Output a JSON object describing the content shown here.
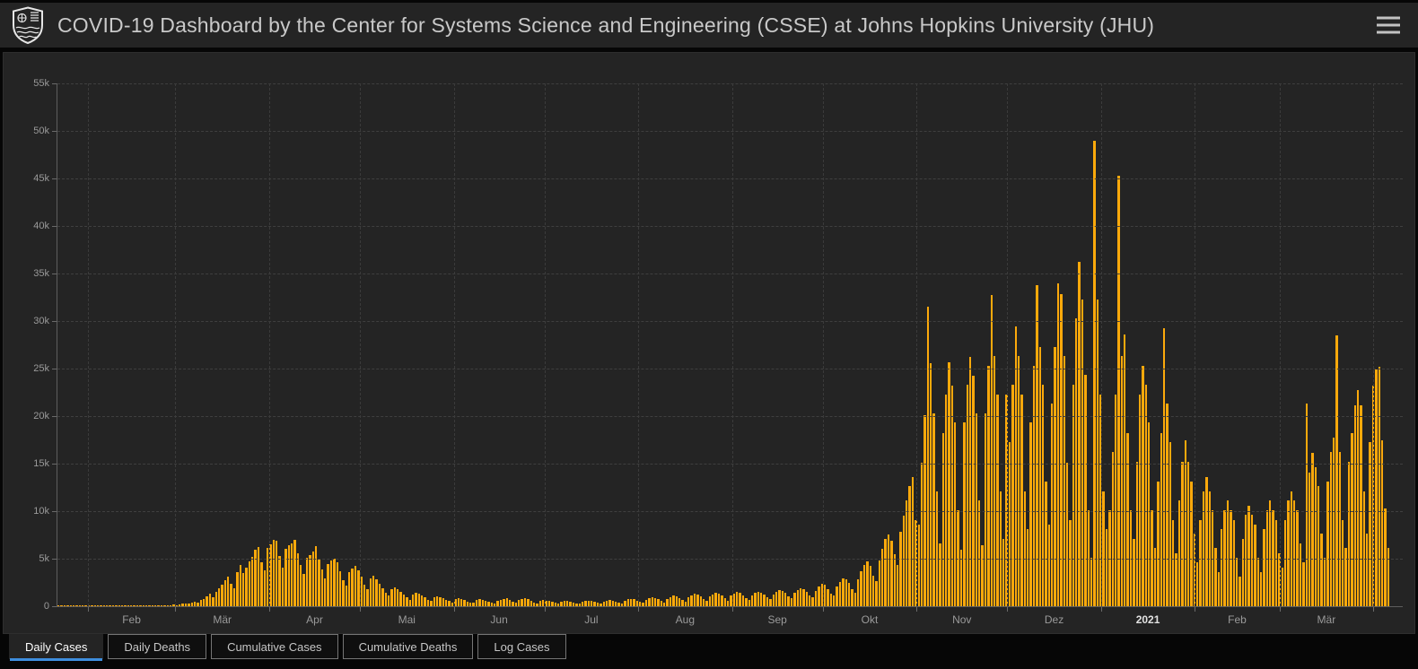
{
  "header": {
    "title": "COVID-19 Dashboard by the Center for Systems Science and Engineering (CSSE) at Johns Hopkins University (JHU)",
    "logo": "jhu-shield",
    "menu_icon": "hamburger"
  },
  "colors": {
    "bar": "#fca90b",
    "panel_bg": "#242424",
    "page_bg": "#060606",
    "active_tab_underline": "#3e8ede",
    "grid": "#3f3f3f",
    "axis": "#5e5e5e",
    "tick_text": "#9a9a9a",
    "title_text": "#c9c9c9"
  },
  "tabs": [
    {
      "label": "Daily Cases",
      "active": true
    },
    {
      "label": "Daily Deaths",
      "active": false
    },
    {
      "label": "Cumulative Cases",
      "active": false
    },
    {
      "label": "Cumulative Deaths",
      "active": false
    },
    {
      "label": "Log Cases",
      "active": false
    }
  ],
  "chart_data": {
    "type": "bar",
    "title": "",
    "xlabel": "",
    "ylabel": "",
    "ylim": [
      0,
      55000
    ],
    "grid": "dashed",
    "y_tick_labels": [
      "0",
      "5k",
      "10k",
      "15k",
      "20k",
      "25k",
      "30k",
      "35k",
      "40k",
      "45k",
      "50k",
      "55k"
    ],
    "total_days": 440,
    "month_boundaries": [
      10,
      39,
      70,
      100,
      131,
      161,
      192,
      223,
      253,
      284,
      314,
      345,
      376,
      404,
      435
    ],
    "months": [
      {
        "label": "Feb",
        "start": 10,
        "end": 39,
        "emphasis": false
      },
      {
        "label": "Mär",
        "start": 39,
        "end": 70,
        "emphasis": false
      },
      {
        "label": "Apr",
        "start": 70,
        "end": 100,
        "emphasis": false
      },
      {
        "label": "Mai",
        "start": 100,
        "end": 131,
        "emphasis": false
      },
      {
        "label": "Jun",
        "start": 131,
        "end": 161,
        "emphasis": false
      },
      {
        "label": "Jul",
        "start": 161,
        "end": 192,
        "emphasis": false
      },
      {
        "label": "Aug",
        "start": 192,
        "end": 223,
        "emphasis": false
      },
      {
        "label": "Sep",
        "start": 223,
        "end": 253,
        "emphasis": false
      },
      {
        "label": "Okt",
        "start": 253,
        "end": 284,
        "emphasis": false
      },
      {
        "label": "Nov",
        "start": 284,
        "end": 314,
        "emphasis": false
      },
      {
        "label": "Dez",
        "start": 314,
        "end": 345,
        "emphasis": false
      },
      {
        "label": "2021",
        "start": 345,
        "end": 376,
        "emphasis": true
      },
      {
        "label": "Feb",
        "start": 376,
        "end": 404,
        "emphasis": false
      },
      {
        "label": "Mär",
        "start": 404,
        "end": 435,
        "emphasis": false
      }
    ],
    "values": [
      1,
      1,
      2,
      2,
      3,
      4,
      4,
      5,
      6,
      8,
      9,
      10,
      11,
      12,
      13,
      14,
      14,
      15,
      16,
      17,
      18,
      19,
      20,
      22,
      24,
      26,
      28,
      30,
      33,
      36,
      40,
      45,
      52,
      60,
      70,
      85,
      105,
      130,
      160,
      120,
      200,
      260,
      330,
      270,
      420,
      520,
      400,
      650,
      800,
      1000,
      1300,
      900,
      1500,
      1850,
      2250,
      2700,
      3100,
      2350,
      1900,
      3600,
      4300,
      3500,
      4100,
      4700,
      5200,
      5900,
      6200,
      4600,
      3800,
      6100,
      6500,
      7000,
      6900,
      5300,
      4100,
      6000,
      6400,
      6600,
      7000,
      5600,
      4300,
      3400,
      5100,
      5400,
      5800,
      6300,
      4900,
      3900,
      2900,
      4400,
      4800,
      5000,
      4600,
      3700,
      2700,
      2200,
      3600,
      4000,
      4200,
      3800,
      3100,
      2300,
      1800,
      2900,
      3200,
      2800,
      2400,
      1900,
      1400,
      1100,
      1800,
      2000,
      1800,
      1500,
      1200,
      900,
      700,
      1200,
      1400,
      1300,
      1100,
      900,
      700,
      550,
      950,
      1050,
      950,
      850,
      700,
      550,
      420,
      720,
      820,
      740,
      640,
      520,
      420,
      360,
      620,
      720,
      660,
      560,
      460,
      360,
      310,
      560,
      660,
      720,
      820,
      620,
      460,
      360,
      620,
      760,
      820,
      720,
      560,
      410,
      310,
      560,
      660,
      610,
      560,
      460,
      360,
      290,
      510,
      610,
      560,
      510,
      410,
      330,
      260,
      460,
      560,
      610,
      560,
      460,
      360,
      290,
      510,
      610,
      660,
      610,
      510,
      410,
      310,
      560,
      710,
      760,
      710,
      610,
      460,
      360,
      660,
      810,
      910,
      860,
      710,
      560,
      410,
      760,
      960,
      1120,
      1020,
      860,
      660,
      510,
      920,
      1120,
      1320,
      1220,
      1020,
      760,
      560,
      1020,
      1270,
      1420,
      1320,
      1120,
      820,
      610,
      1120,
      1320,
      1470,
      1370,
      1170,
      870,
      660,
      1170,
      1420,
      1520,
      1420,
      1220,
      920,
      710,
      1270,
      1520,
      1720,
      1620,
      1420,
      1020,
      810,
      1420,
      1720,
      1920,
      1820,
      1520,
      1120,
      910,
      1620,
      2030,
      2330,
      2230,
      1830,
      1330,
      1110,
      2030,
      2530,
      2930,
      2830,
      2430,
      1830,
      1430,
      2830,
      3640,
      4340,
      4740,
      4240,
      3240,
      2640,
      4840,
      6040,
      7050,
      7560,
      6860,
      5450,
      4340,
      7860,
      9560,
      11100,
      12600,
      13600,
      9100,
      8600,
      15100,
      20100,
      31500,
      25600,
      20300,
      12100,
      6600,
      18200,
      22300,
      25700,
      23200,
      19300,
      10100,
      5900,
      19300,
      23300,
      26200,
      24200,
      20300,
      11100,
      6400,
      20300,
      25300,
      32700,
      26300,
      22300,
      12100,
      7100,
      22300,
      17300,
      23300,
      29400,
      26300,
      22300,
      12100,
      8100,
      19300,
      25300,
      33800,
      27300,
      23300,
      13100,
      8600,
      21300,
      27300,
      34000,
      32800,
      26300,
      15100,
      9100,
      23300,
      30300,
      36200,
      32300,
      24300,
      10100,
      5100,
      49000,
      32300,
      22300,
      12100,
      8100,
      10100,
      16200,
      22300,
      45300,
      26300,
      28600,
      18200,
      10100,
      7100,
      15200,
      22300,
      25300,
      23300,
      19300,
      10100,
      6100,
      13100,
      18200,
      29200,
      21300,
      17300,
      9100,
      5600,
      11100,
      15200,
      17500,
      15200,
      13100,
      7600,
      4600,
      9100,
      12100,
      13600,
      12100,
      10100,
      6100,
      3600,
      8100,
      10100,
      11100,
      10100,
      9100,
      5100,
      3100,
      7100,
      9600,
      10600,
      9600,
      8600,
      5100,
      3600,
      8100,
      10100,
      11100,
      10100,
      9100,
      5600,
      4100,
      9100,
      11100,
      12100,
      11100,
      10100,
      6600,
      4600,
      21300,
      14100,
      16100,
      14600,
      12600,
      7600,
      5100,
      13100,
      16200,
      17700,
      28500,
      16200,
      9100,
      6100,
      15200,
      18200,
      21100,
      22700,
      21100,
      12100,
      7600,
      17300,
      23200,
      24900,
      25200,
      17500,
      10300,
      6100
    ]
  }
}
